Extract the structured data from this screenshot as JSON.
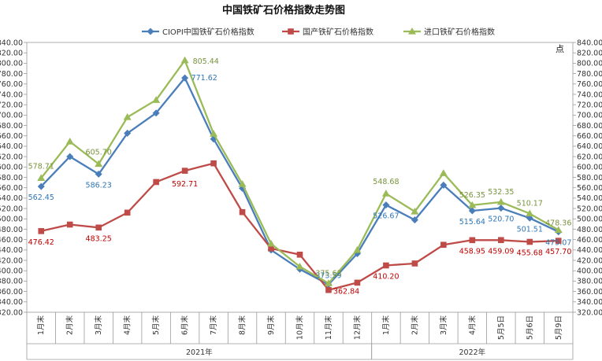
{
  "chart_data": {
    "type": "line",
    "title": "中国铁矿石价格指数走势图",
    "unit_label": "点",
    "categories": [
      "1月末",
      "2月末",
      "3月末",
      "4月末",
      "5月末",
      "6月末",
      "7月末",
      "8月末",
      "9月末",
      "10月末",
      "11月末",
      "12月末",
      "1月末",
      "2月末",
      "3月末",
      "4月末",
      "5月5日",
      "5月6日",
      "5月9日"
    ],
    "year_groups": [
      {
        "label": "2021年",
        "start": 0,
        "end": 11
      },
      {
        "label": "2022年",
        "start": 12,
        "end": 18
      }
    ],
    "ylim": [
      320,
      840
    ],
    "ytick_step": 20,
    "grid": false,
    "legend_position": "top",
    "series": [
      {
        "name": "CIOPI中国铁矿石价格指数",
        "color": "#4A7EBB",
        "marker": "diamond",
        "values": [
          562.45,
          620,
          586.23,
          665,
          704,
          771.62,
          654,
          559,
          440,
          403,
          373.59,
          433,
          526.67,
          498,
          565,
          515.64,
          520.7,
          501.51,
          475.07
        ]
      },
      {
        "name": "国产铁矿石价格指数",
        "color": "#BE4B48",
        "marker": "square",
        "values": [
          476.42,
          489,
          483.25,
          512,
          571,
          592.71,
          607,
          513,
          443,
          431,
          362.84,
          377,
          410.2,
          414,
          450,
          458.95,
          459.09,
          455.68,
          457.7
        ]
      },
      {
        "name": "进口铁矿石价格指数",
        "color": "#9BBB59",
        "marker": "triangle",
        "values": [
          578.71,
          649,
          605.7,
          696,
          729,
          805.44,
          664,
          567,
          452,
          408,
          375.63,
          440,
          548.68,
          514,
          588,
          526.35,
          532.35,
          510.17,
          478.36
        ]
      }
    ],
    "data_labels": [
      {
        "series": 0,
        "index": 0,
        "text": "562.45"
      },
      {
        "series": 0,
        "index": 2,
        "text": "586.23"
      },
      {
        "series": 0,
        "index": 5,
        "text": "771.62"
      },
      {
        "series": 0,
        "index": 10,
        "text": "373.59"
      },
      {
        "series": 0,
        "index": 12,
        "text": "526.67"
      },
      {
        "series": 0,
        "index": 15,
        "text": "515.64"
      },
      {
        "series": 0,
        "index": 16,
        "text": "520.70"
      },
      {
        "series": 0,
        "index": 17,
        "text": "501.51"
      },
      {
        "series": 0,
        "index": 18,
        "text": "475.07"
      },
      {
        "series": 1,
        "index": 0,
        "text": "476.42"
      },
      {
        "series": 1,
        "index": 2,
        "text": "483.25"
      },
      {
        "series": 1,
        "index": 5,
        "text": "592.71"
      },
      {
        "series": 1,
        "index": 10,
        "text": "362.84"
      },
      {
        "series": 1,
        "index": 12,
        "text": "410.20"
      },
      {
        "series": 1,
        "index": 15,
        "text": "458.95"
      },
      {
        "series": 1,
        "index": 16,
        "text": "459.09"
      },
      {
        "series": 1,
        "index": 17,
        "text": "455.68"
      },
      {
        "series": 1,
        "index": 18,
        "text": "457.70"
      },
      {
        "series": 2,
        "index": 0,
        "text": "578.71"
      },
      {
        "series": 2,
        "index": 2,
        "text": "605.70"
      },
      {
        "series": 2,
        "index": 5,
        "text": "805.44"
      },
      {
        "series": 2,
        "index": 10,
        "text": "375.63"
      },
      {
        "series": 2,
        "index": 12,
        "text": "548.68"
      },
      {
        "series": 2,
        "index": 15,
        "text": "526.35"
      },
      {
        "series": 2,
        "index": 16,
        "text": "532.35"
      },
      {
        "series": 2,
        "index": 17,
        "text": "510.17"
      },
      {
        "series": 2,
        "index": 18,
        "text": "478.36"
      }
    ]
  }
}
